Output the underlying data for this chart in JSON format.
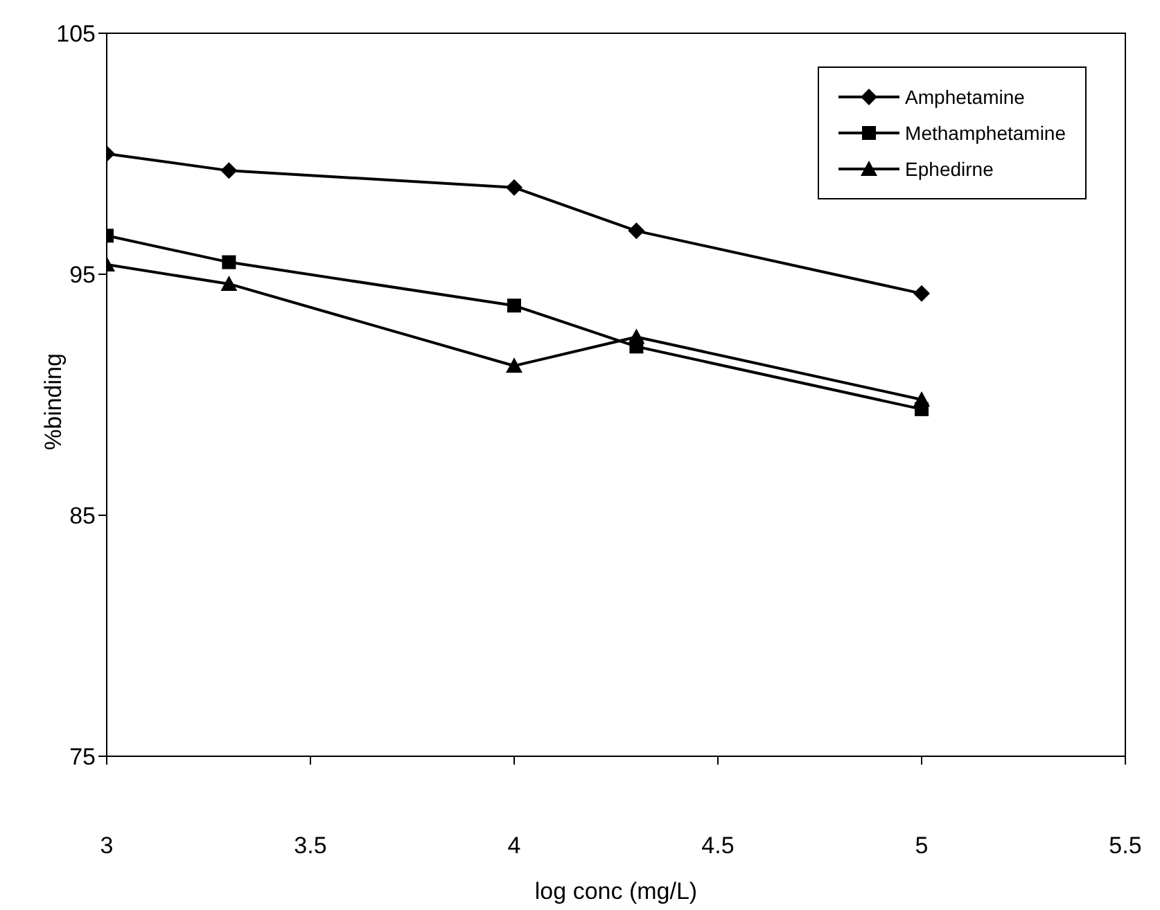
{
  "chart_data": {
    "type": "line",
    "xlabel": "log conc (mg/L)",
    "ylabel": "%binding",
    "xlim": [
      3,
      5.5
    ],
    "xticks": [
      3,
      3.5,
      4,
      4.5,
      5,
      5.5
    ],
    "ylim": [
      75,
      105
    ],
    "yticks": [
      75,
      85,
      95,
      105
    ],
    "legend": "top right",
    "line_style": "solid",
    "series": [
      {
        "name": "Amphetamine",
        "color": "#000000",
        "marker": "diamond",
        "x": [
          3,
          3.3,
          4,
          4.3,
          5
        ],
        "values": [
          100.0,
          99.3,
          98.6,
          96.8,
          94.2
        ]
      },
      {
        "name": "Methamphetamine",
        "color": "#000000",
        "marker": "square",
        "x": [
          3,
          3.3,
          4,
          4.3,
          5
        ],
        "values": [
          96.6,
          95.5,
          93.7,
          92.0,
          89.4
        ]
      },
      {
        "name": "Ephedirne",
        "color": "#000000",
        "marker": "triangle",
        "x": [
          3,
          3.3,
          4,
          4.3,
          5
        ],
        "values": [
          95.4,
          94.6,
          91.2,
          92.4,
          89.8
        ]
      }
    ]
  }
}
